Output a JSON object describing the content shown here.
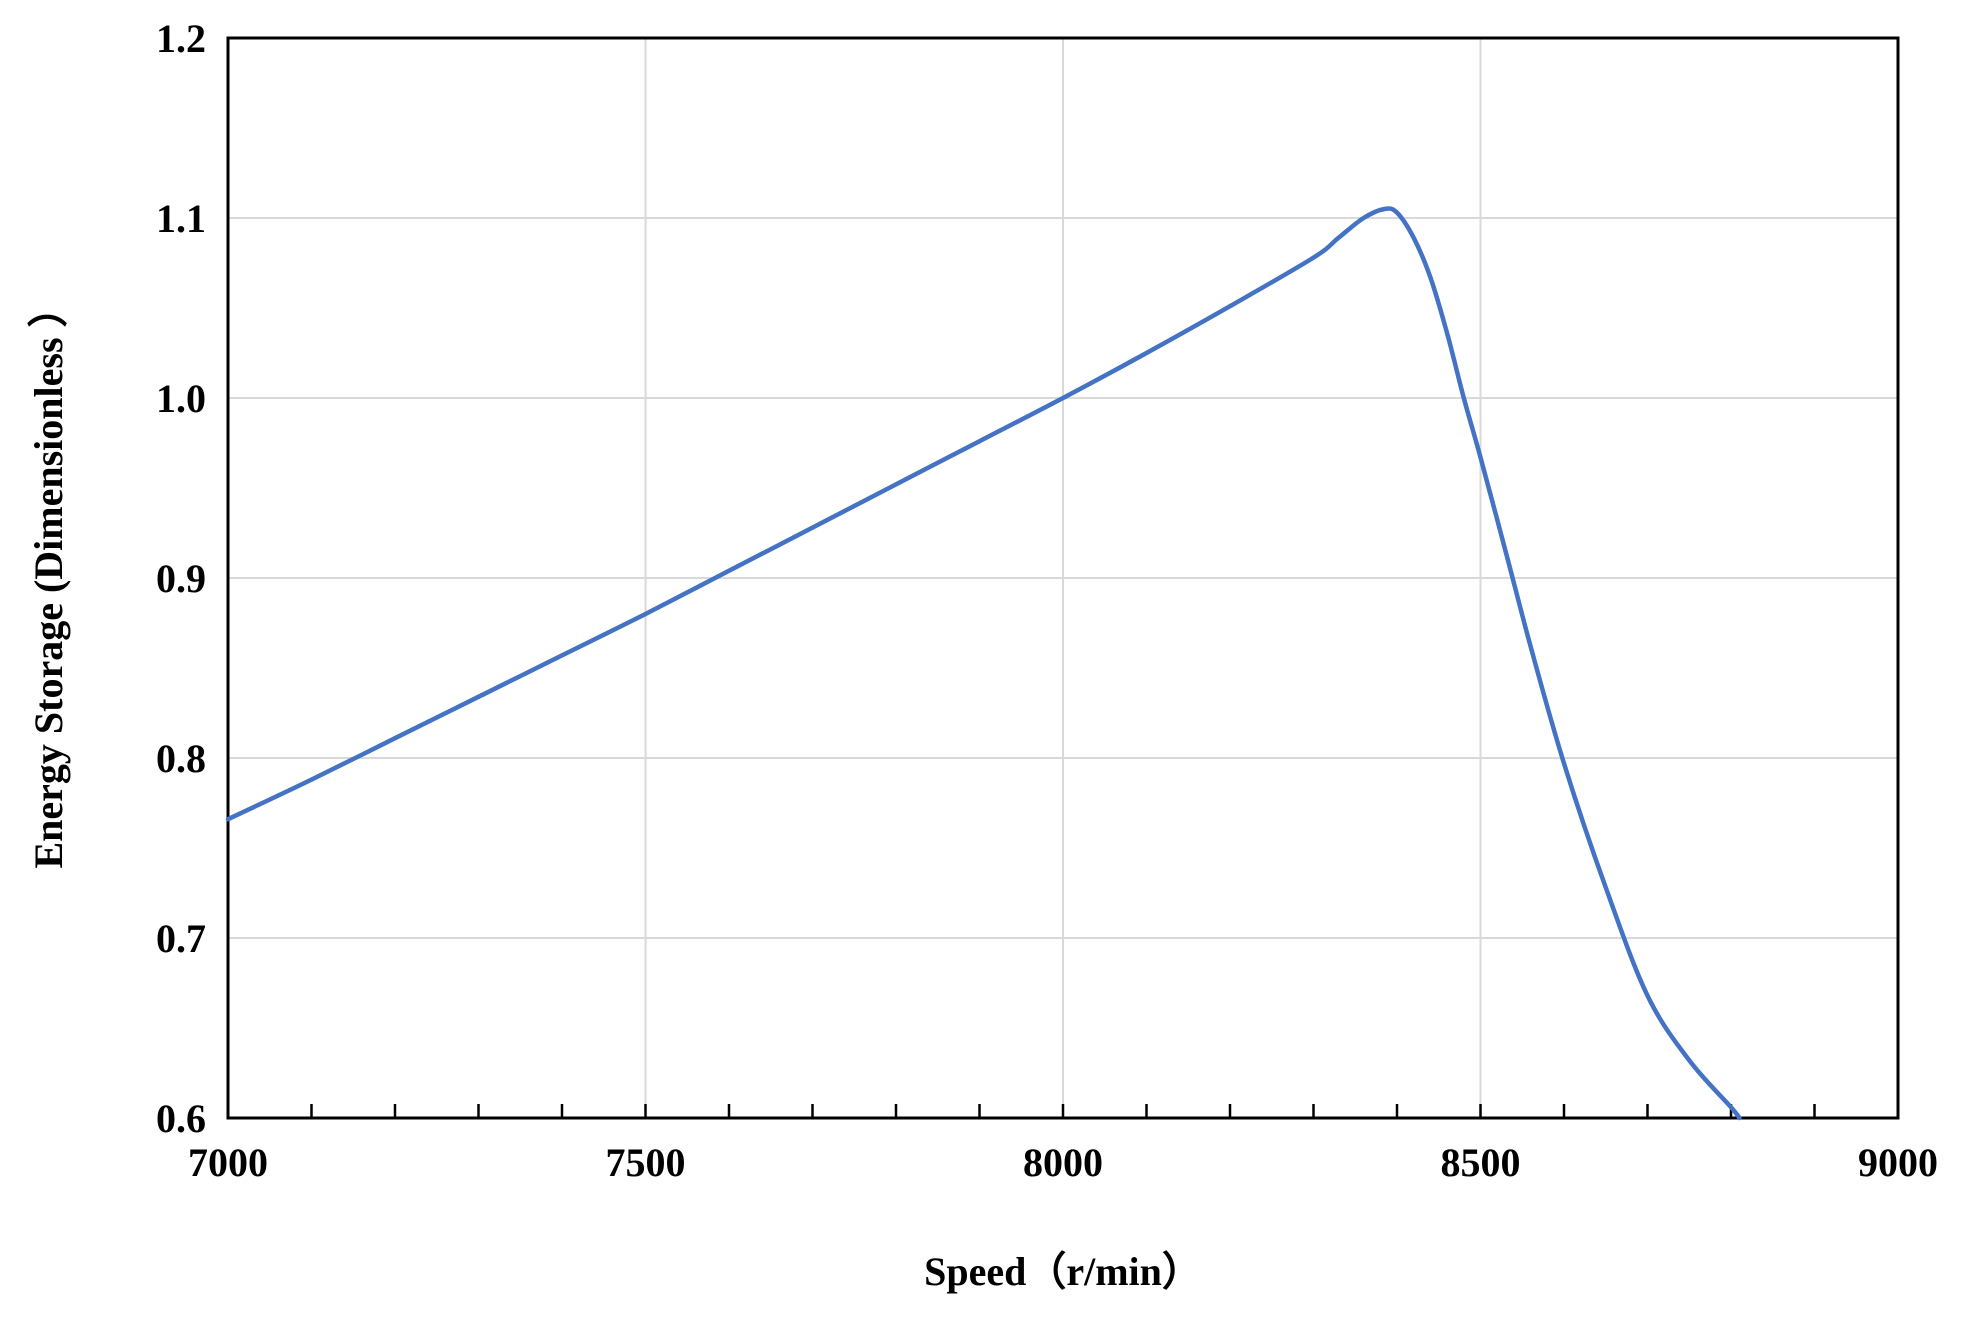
{
  "chart_data": {
    "type": "line",
    "title": "",
    "xlabel": "Speed（r/min）",
    "ylabel": "Energy Storage (Dimensionless ）",
    "xlim": [
      7000,
      9000
    ],
    "ylim": [
      0.6,
      1.2
    ],
    "x_ticks": [
      "7000",
      "7500",
      "8000",
      "8500",
      "9000"
    ],
    "y_ticks": [
      "0.6",
      "0.7",
      "0.8",
      "0.9",
      "1.0",
      "1.1",
      "1.2"
    ],
    "x_tick_values": [
      7000,
      7500,
      8000,
      8500,
      9000
    ],
    "y_tick_values": [
      0.6,
      0.7,
      0.8,
      0.9,
      1.0,
      1.1,
      1.2
    ],
    "x_minor_step": 100,
    "grid": true,
    "legend": "none",
    "series": [
      {
        "color": "#4472C4",
        "x": [
          7000,
          7100,
          7200,
          7300,
          7400,
          7500,
          7600,
          7700,
          7800,
          7900,
          8000,
          8100,
          8200,
          8300,
          8330,
          8360,
          8385,
          8400,
          8420,
          8440,
          8460,
          8480,
          8500,
          8530,
          8560,
          8600,
          8650,
          8700,
          8750,
          8800,
          8810
        ],
        "y": [
          0.766,
          0.788,
          0.811,
          0.834,
          0.857,
          0.88,
          0.904,
          0.928,
          0.952,
          0.976,
          1.0,
          1.025,
          1.051,
          1.078,
          1.089,
          1.1,
          1.105,
          1.103,
          1.089,
          1.067,
          1.036,
          1.0,
          0.967,
          0.915,
          0.862,
          0.797,
          0.728,
          0.668,
          0.632,
          0.606,
          0.6
        ]
      }
    ]
  }
}
